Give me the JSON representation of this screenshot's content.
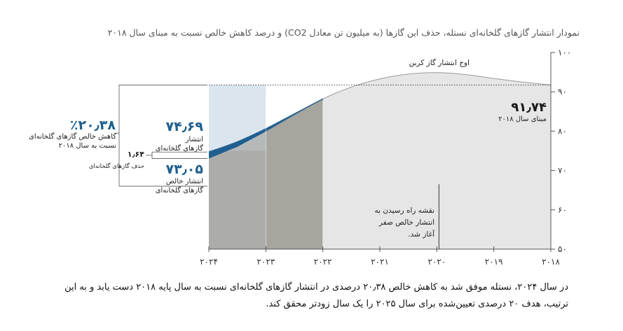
{
  "title": "نمودار انتشار گازهای گلخانه‌ای نستله، حذف این گازها (به میلیون تن معادل CO2) و درصد کاهش خالص نسبت به مبنای سال ۲۰۱۸",
  "caption": "در سال ۲۰۲۴، نستله موفق شد به کاهش خالص ۲۰٫۳۸ درصدی در انتشار گازهای گلخانه‌ای نسبت به سال پایه ۲۰۱۸ دست یابد و به این ترتیب، هدف ۲۰ درصدی تعیین‌شده برای سال ۲۰۲۵ را یک سال زودتر محقق کند.",
  "annotations": {
    "peak": "اوج انتشار گاز کربن",
    "baseline_value": "۹۱٫۷۴",
    "baseline_label": "مبنای سال ۲۰۱۸",
    "emissions_value": "۷۴٫۶۹",
    "emissions_label_1": "انتشار",
    "emissions_label_2": "گازهای گلخانه‌ای",
    "net_value": "۷۳٫۰۵",
    "net_label_1": "انتشار خالص",
    "net_label_2": "گازهای گلخانه‌ای",
    "removals_value": "۱٫۶۴",
    "removals_label": "حذف گازهای گلخانه‌ای",
    "reduction_value": "٪۲۰٫۳۸",
    "reduction_label_1": "کاهش خالص گازهای گلخانه‌ای",
    "reduction_label_2": "نسبت به سال ۲۰۱۸",
    "roadmap_1": "نقشه راه رسیدن به",
    "roadmap_2": "انتشار خالص صفر",
    "roadmap_3": "آغاز شد."
  },
  "chart_data": {
    "type": "area",
    "x_axis": {
      "tick_labels": [
        "۲۰۲۴",
        "۲۰۲۳",
        "۲۰۲۲",
        "۲۰۲۱",
        "۲۰۲۰",
        "۲۰۱۹",
        "۲۰۱۸"
      ],
      "values": [
        2024,
        2023,
        2022,
        2021,
        2020,
        2019,
        2018
      ],
      "reversed": true
    },
    "y_axis": {
      "range": [
        50,
        100
      ],
      "ticks": [
        50,
        60,
        70,
        80,
        90,
        100
      ],
      "tick_labels": [
        "۵۰",
        "۶۰",
        "۷۰",
        "۸۰",
        "۹۰",
        "۱۰۰"
      ],
      "position": "right"
    },
    "series": [
      {
        "role": "emissions",
        "color": "#1f5f8f",
        "points": [
          [
            2024,
            74.69
          ],
          [
            2023.5,
            77.3
          ],
          [
            2023,
            80.6
          ],
          [
            2022.5,
            84.4
          ],
          [
            2022,
            88.2
          ],
          [
            2021.5,
            91.2
          ],
          [
            2021,
            93.3
          ],
          [
            2020.5,
            94.5
          ],
          [
            2020,
            94.9
          ],
          [
            2019.5,
            94.4
          ],
          [
            2019,
            93.4
          ],
          [
            2018.5,
            92.5
          ],
          [
            2018,
            91.74
          ]
        ]
      },
      {
        "role": "net",
        "color": "#a6a59e",
        "points": [
          [
            2024,
            73.05
          ],
          [
            2023.5,
            76.0
          ],
          [
            2023,
            79.9
          ],
          [
            2022.5,
            84.1
          ],
          [
            2022,
            88.2
          ]
        ]
      }
    ],
    "baseline": 91.74,
    "highlight_year": 2024,
    "roadmap_year": 2020,
    "colors": {
      "emissions": "#1f5f8f",
      "net_area": "#a6a59e",
      "highlight_top": "#d5e1eb",
      "area_light": "#e6e6e6",
      "highlight_bottom": "#9e9c93"
    }
  }
}
